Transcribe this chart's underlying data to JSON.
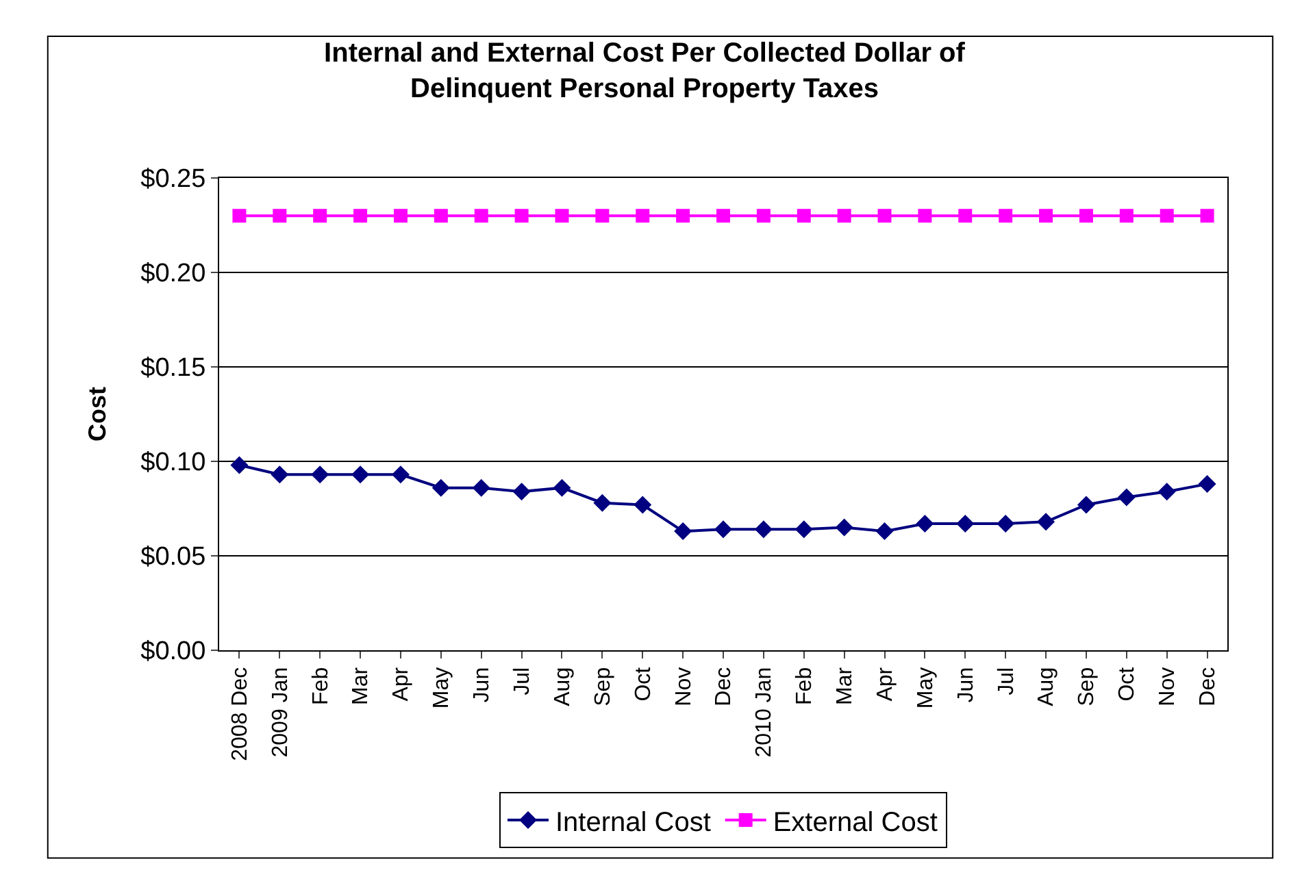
{
  "chart_data": {
    "type": "line",
    "title": "Internal and External Cost Per Collected Dollar of\nDelinquent Personal Property Taxes",
    "ylabel": "Cost",
    "categories": [
      "2008 Dec",
      "2009 Jan",
      "Feb",
      "Mar",
      "Apr",
      "May",
      "Jun",
      "Jul",
      "Aug",
      "Sep",
      "Oct",
      "Nov",
      "Dec",
      "2010 Jan",
      "Feb",
      "Mar",
      "Apr",
      "May",
      "Jun",
      "Jul",
      "Aug",
      "Sep",
      "Oct",
      "Nov",
      "Dec"
    ],
    "series": [
      {
        "name": "Internal Cost",
        "color": "#000080",
        "marker": "diamond",
        "values": [
          0.098,
          0.093,
          0.093,
          0.093,
          0.093,
          0.086,
          0.086,
          0.084,
          0.086,
          0.078,
          0.077,
          0.063,
          0.064,
          0.064,
          0.064,
          0.065,
          0.063,
          0.067,
          0.067,
          0.067,
          0.068,
          0.077,
          0.081,
          0.084,
          0.088
        ]
      },
      {
        "name": "External Cost",
        "color": "#ff00ff",
        "marker": "square",
        "values": [
          0.23,
          0.23,
          0.23,
          0.23,
          0.23,
          0.23,
          0.23,
          0.23,
          0.23,
          0.23,
          0.23,
          0.23,
          0.23,
          0.23,
          0.23,
          0.23,
          0.23,
          0.23,
          0.23,
          0.23,
          0.23,
          0.23,
          0.23,
          0.23,
          0.23
        ]
      }
    ],
    "ylim": [
      0,
      0.25
    ],
    "yticks": [
      {
        "value": 0,
        "label": "$0.00"
      },
      {
        "value": 0.05,
        "label": "$0.05"
      },
      {
        "value": 0.1,
        "label": "$0.10"
      },
      {
        "value": 0.15,
        "label": "$0.15"
      },
      {
        "value": 0.2,
        "label": "$0.20"
      },
      {
        "value": 0.25,
        "label": "$0.25"
      }
    ],
    "grid": "y",
    "legend": "bottom",
    "line_style": "solid"
  }
}
